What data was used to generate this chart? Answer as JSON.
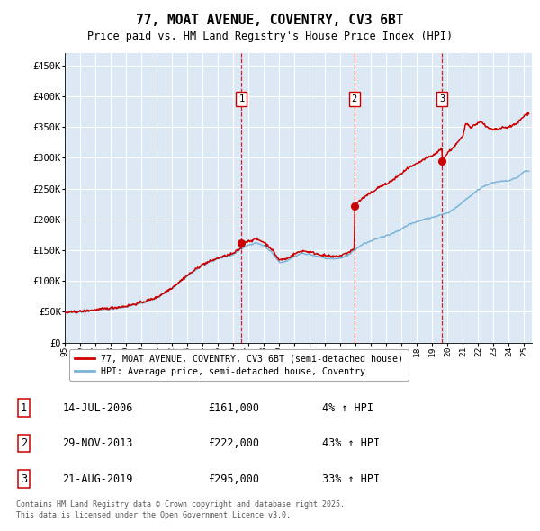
{
  "title": "77, MOAT AVENUE, COVENTRY, CV3 6BT",
  "subtitle": "Price paid vs. HM Land Registry's House Price Index (HPI)",
  "background_color": "#ffffff",
  "plot_bg_color": "#dce9f5",
  "hpi_color": "#7ab4d8",
  "price_color": "#cc0000",
  "marker_color": "#cc0000",
  "vline_color": "#cc0000",
  "grid_color": "#ffffff",
  "yticks": [
    0,
    50000,
    100000,
    150000,
    200000,
    250000,
    300000,
    350000,
    400000,
    450000
  ],
  "ytick_labels": [
    "£0",
    "£50K",
    "£100K",
    "£150K",
    "£200K",
    "£250K",
    "£300K",
    "£350K",
    "£400K",
    "£450K"
  ],
  "sales": [
    {
      "label": "1",
      "date_str": "14-JUL-2006",
      "year": 2006.54,
      "price": 161000,
      "pct": "4%"
    },
    {
      "label": "2",
      "date_str": "29-NOV-2013",
      "year": 2013.91,
      "price": 222000,
      "pct": "43%"
    },
    {
      "label": "3",
      "date_str": "21-AUG-2019",
      "year": 2019.64,
      "price": 295000,
      "pct": "33%"
    }
  ],
  "legend_entries": [
    "77, MOAT AVENUE, COVENTRY, CV3 6BT (semi-detached house)",
    "HPI: Average price, semi-detached house, Coventry"
  ],
  "footnote": "Contains HM Land Registry data © Crown copyright and database right 2025.\nThis data is licensed under the Open Government Licence v3.0.",
  "xmin": 1995,
  "xmax": 2025.5,
  "ymin": 0,
  "ymax": 470000,
  "xticks": [
    1995,
    1996,
    1997,
    1998,
    1999,
    2000,
    2001,
    2002,
    2003,
    2004,
    2005,
    2006,
    2007,
    2008,
    2009,
    2010,
    2011,
    2012,
    2013,
    2014,
    2015,
    2016,
    2017,
    2018,
    2019,
    2020,
    2021,
    2022,
    2023,
    2024,
    2025
  ],
  "xtick_labels": [
    "95",
    "96",
    "97",
    "98",
    "99",
    "00",
    "01",
    "02",
    "03",
    "04",
    "05",
    "06",
    "07",
    "08",
    "09",
    "10",
    "11",
    "12",
    "13",
    "14",
    "15",
    "16",
    "17",
    "18",
    "19",
    "20",
    "21",
    "22",
    "23",
    "24",
    "25"
  ]
}
